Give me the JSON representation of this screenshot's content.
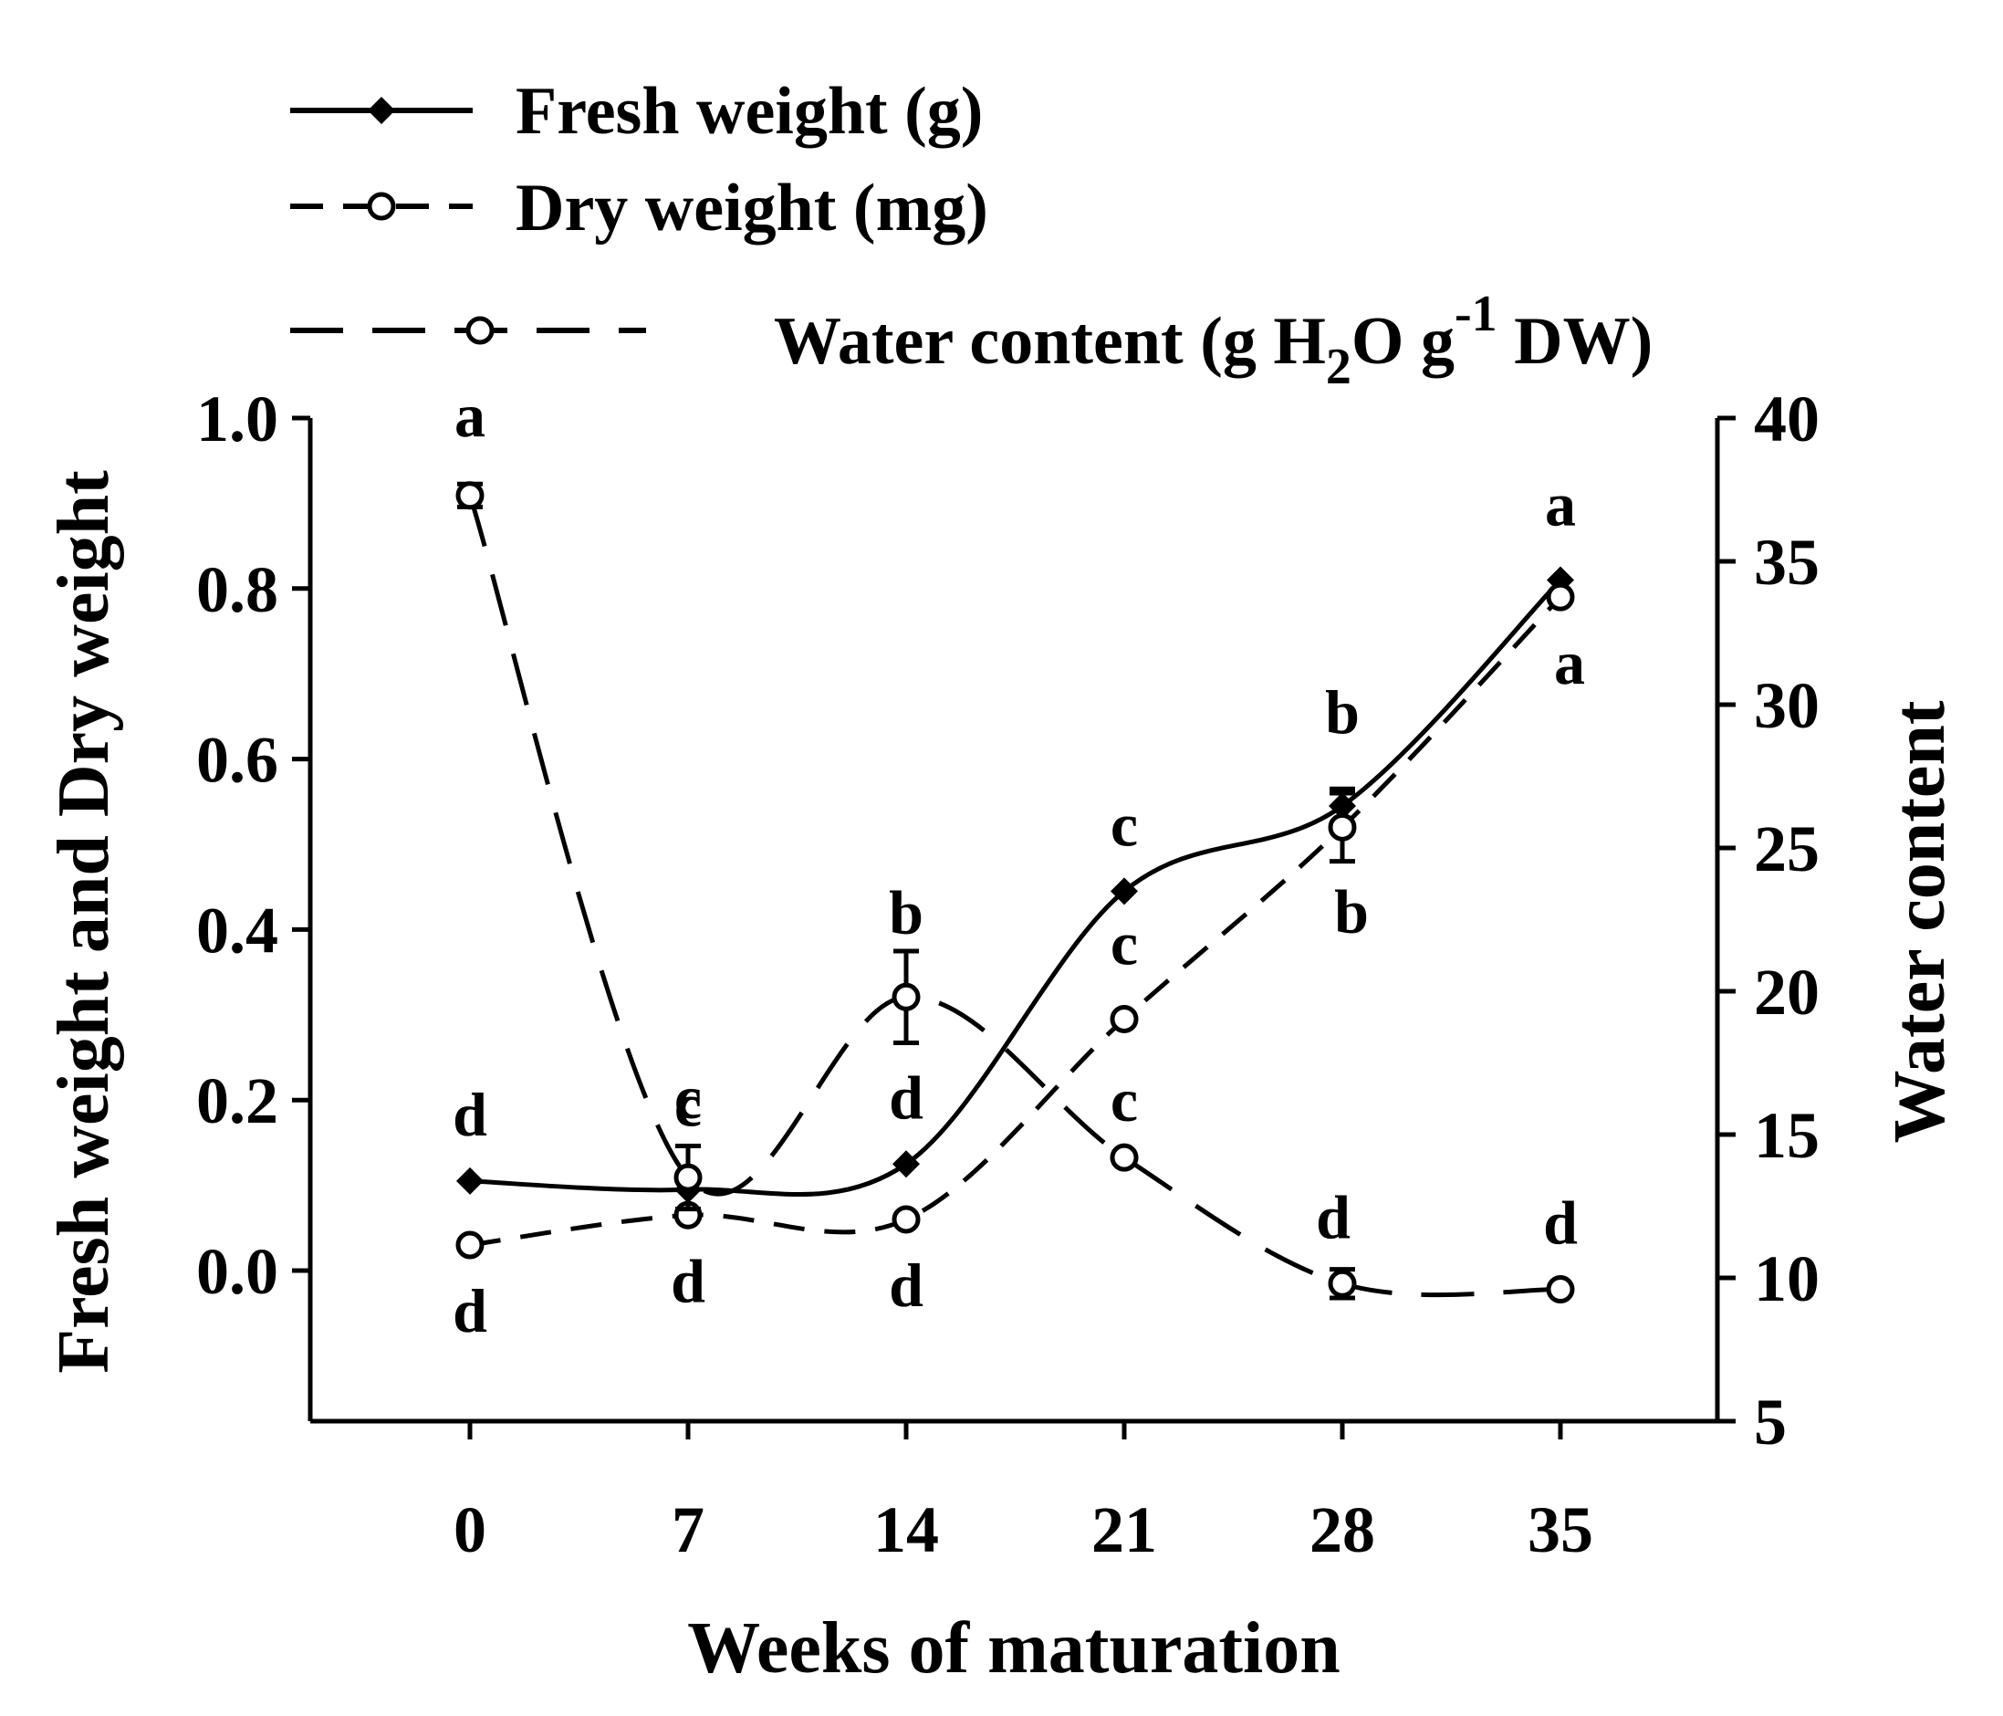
{
  "chart_data": {
    "type": "line",
    "xlabel": "Weeks of maturation",
    "ylabel_left": "Fresh weight and Dry weight",
    "ylabel_right": "Water content",
    "x": [
      0,
      7,
      14,
      21,
      28,
      35
    ],
    "x_tick_labels": [
      "0",
      "7",
      "14",
      "21",
      "28",
      "35"
    ],
    "ylim_left": [
      -0.18,
      1.0
    ],
    "ylim_right": [
      5,
      40
    ],
    "y_left_ticks": [
      "0.0",
      "0.2",
      "0.4",
      "0.6",
      "0.8",
      "1.0"
    ],
    "y_right_ticks": [
      "5",
      "10",
      "15",
      "20",
      "25",
      "30",
      "35",
      "40"
    ],
    "legend": {
      "position": "top",
      "fresh_label": "Fresh weight (g)",
      "dry_label": "Dry weight (mg)",
      "water_label_prefix": "Water content (g H",
      "water_label_sub": "2",
      "water_label_mid": "O g",
      "water_label_sup": "-1",
      "water_label_suffix": " DW)"
    },
    "series": [
      {
        "name": "Fresh weight (g)",
        "axis": "left",
        "line_style": "solid",
        "marker": "filled-diamond",
        "values": [
          0.105,
          0.095,
          0.125,
          0.445,
          0.545,
          0.81
        ],
        "errors": [
          0.0,
          0.0,
          0.0,
          0.0,
          0.02,
          0.0
        ],
        "letters": [
          "d",
          "c",
          "d",
          "c",
          "b",
          "a"
        ]
      },
      {
        "name": "Dry weight (mg)",
        "axis": "left",
        "line_style": "dashed",
        "marker": "open-circle",
        "values": [
          0.03,
          0.065,
          0.06,
          0.295,
          0.52,
          0.79
        ],
        "errors": [
          0.0,
          0.0,
          0.0,
          0.0,
          0.04,
          0.0
        ],
        "letters": [
          "d",
          "d",
          "d",
          "c",
          "b",
          "a"
        ]
      },
      {
        "name": "Water content (g H2O g-1 DW)",
        "axis": "right",
        "line_style": "long-dashed",
        "marker": "open-circle",
        "values": [
          37.3,
          13.5,
          19.8,
          14.2,
          9.8,
          9.6
        ],
        "errors": [
          0.4,
          1.1,
          1.6,
          0.0,
          0.5,
          0.0
        ],
        "letters": [
          "a",
          "c",
          "b",
          "c",
          "d",
          "d"
        ]
      }
    ]
  }
}
